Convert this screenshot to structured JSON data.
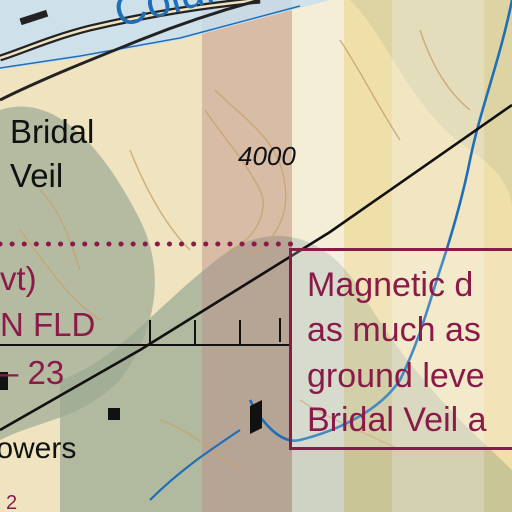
{
  "map": {
    "river_label": "Columbia",
    "place_label": [
      "Bridal",
      "Veil"
    ],
    "elevation_label": "4000",
    "airway_fragments": [
      "vt)",
      "N FLD",
      "– 23"
    ],
    "facility_label": "towers",
    "annotation_lines": [
      "Magnetic d",
      "as much as",
      "ground leve",
      "Bridal Veil a"
    ],
    "bottom_fragment": "2",
    "colors": {
      "water": "#1f6fb8",
      "text": "#111111",
      "annotation": "#8a1b49",
      "terrain_light": "#f1e6c3",
      "terrain_dark": "#8ea08a",
      "tint_band": "#bc8c87"
    }
  }
}
